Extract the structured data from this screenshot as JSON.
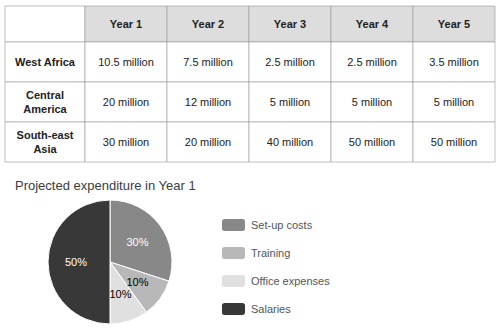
{
  "chart_data": [
    {
      "type": "table",
      "categories": [
        "Year 1",
        "Year 2",
        "Year 3",
        "Year 4",
        "Year 5"
      ],
      "series": [
        {
          "name": "West Africa",
          "values": [
            10500000,
            7500000,
            2500000,
            2500000,
            3500000
          ],
          "value_labels": [
            "10.5 million",
            "7.5 million",
            "2.5 million",
            "2.5 million",
            "3.5 million"
          ]
        },
        {
          "name": "Central\nAmerica",
          "values": [
            20000000,
            12000000,
            5000000,
            5000000,
            5000000
          ],
          "value_labels": [
            "20 million",
            "12 million",
            "5 million",
            "5 million",
            "5 million"
          ]
        },
        {
          "name": "South-east\nAsia",
          "values": [
            30000000,
            20000000,
            40000000,
            50000000,
            50000000
          ],
          "value_labels": [
            "30 million",
            "20 million",
            "40 million",
            "50 million",
            "50 million"
          ]
        }
      ]
    },
    {
      "type": "pie",
      "title": "Projected expenditure in Year 1",
      "categories": [
        "Set-up costs",
        "Training",
        "Office expenses",
        "Salaries"
      ],
      "values": [
        30,
        10,
        10,
        50
      ],
      "value_labels": [
        "30%",
        "10%",
        "10%",
        "50%"
      ],
      "colors": [
        "#888888",
        "#b8b8b8",
        "#e0e0e0",
        "#383838"
      ],
      "data_labels": true,
      "legend": "right"
    }
  ]
}
